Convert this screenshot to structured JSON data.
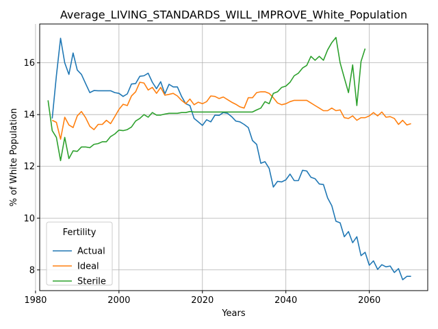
{
  "chart_data": {
    "type": "line",
    "title": "Average_LIVING_STANDARDS_WILL_IMPROVE_White_Population",
    "xlabel": "Years",
    "ylabel": "% of White Population",
    "xlim": [
      1981,
      2074
    ],
    "ylim": [
      7.2,
      17.5
    ],
    "xticks": [
      1980,
      2000,
      2020,
      2040,
      2060
    ],
    "yticks": [
      8,
      10,
      12,
      14,
      16
    ],
    "grid": true,
    "legend": {
      "title": "Fertility",
      "position": "lower-left"
    },
    "series": [
      {
        "name": "Actual",
        "color": "#1f77b4",
        "x": [
          1984,
          1985,
          1986,
          1987,
          1988,
          1989,
          1990,
          1991,
          1992,
          1993,
          1994,
          1995,
          1996,
          1997,
          1998,
          1999,
          2000,
          2001,
          2002,
          2003,
          2004,
          2005,
          2006,
          2007,
          2008,
          2009,
          2010,
          2011,
          2012,
          2013,
          2014,
          2015,
          2016,
          2017,
          2018,
          2019,
          2020,
          2021,
          2022,
          2023,
          2024,
          2025,
          2026,
          2027,
          2028,
          2029,
          2030,
          2031,
          2032,
          2033,
          2034,
          2035,
          2036,
          2037,
          2038,
          2039,
          2040,
          2041,
          2042,
          2043,
          2044,
          2045,
          2046,
          2047,
          2048,
          2049,
          2050,
          2051,
          2052,
          2053,
          2054,
          2055,
          2056,
          2057,
          2058,
          2059,
          2060,
          2061,
          2062,
          2063,
          2064,
          2065,
          2066,
          2067,
          2068,
          2069,
          2070
        ],
        "y": [
          13.85,
          15.5,
          16.95,
          16.0,
          15.55,
          16.38,
          15.72,
          15.55,
          15.2,
          14.85,
          14.93,
          14.92,
          14.92,
          14.92,
          14.92,
          14.85,
          14.82,
          14.7,
          14.8,
          15.18,
          15.2,
          15.48,
          15.5,
          15.6,
          15.25,
          15.0,
          15.27,
          14.8,
          15.17,
          15.07,
          15.07,
          14.7,
          14.42,
          14.35,
          13.85,
          13.72,
          13.58,
          13.8,
          13.72,
          13.98,
          13.97,
          14.08,
          14.05,
          13.92,
          13.75,
          13.72,
          13.62,
          13.5,
          13.0,
          12.85,
          12.12,
          12.18,
          11.92,
          11.2,
          11.42,
          11.4,
          11.48,
          11.7,
          11.45,
          11.45,
          11.85,
          11.82,
          11.58,
          11.52,
          11.32,
          11.3,
          10.78,
          10.48,
          9.88,
          9.82,
          9.28,
          9.48,
          9.05,
          9.28,
          8.55,
          8.68,
          8.18,
          8.35,
          8.02,
          8.2,
          8.12,
          8.15,
          7.9,
          8.05,
          7.62,
          7.75,
          7.75
        ]
      },
      {
        "name": "Ideal",
        "color": "#ff7f0e",
        "x": [
          1984,
          1985,
          1986,
          1987,
          1988,
          1989,
          1990,
          1991,
          1992,
          1993,
          1994,
          1995,
          1996,
          1997,
          1998,
          1999,
          2000,
          2001,
          2002,
          2003,
          2004,
          2005,
          2006,
          2007,
          2008,
          2009,
          2010,
          2011,
          2012,
          2013,
          2014,
          2015,
          2016,
          2017,
          2018,
          2019,
          2020,
          2021,
          2022,
          2023,
          2024,
          2025,
          2026,
          2027,
          2028,
          2029,
          2030,
          2031,
          2032,
          2033,
          2034,
          2035,
          2036,
          2037,
          2038,
          2039,
          2040,
          2041,
          2042,
          2043,
          2044,
          2045,
          2046,
          2047,
          2048,
          2049,
          2050,
          2051,
          2052,
          2053,
          2054,
          2055,
          2056,
          2057,
          2058,
          2059,
          2060,
          2061,
          2062,
          2063,
          2064,
          2065,
          2066,
          2067,
          2068,
          2069,
          2070
        ],
        "y": [
          13.78,
          13.7,
          13.05,
          13.9,
          13.6,
          13.5,
          13.95,
          14.12,
          13.88,
          13.55,
          13.42,
          13.62,
          13.62,
          13.78,
          13.65,
          13.92,
          14.2,
          14.4,
          14.35,
          14.72,
          14.88,
          15.25,
          15.22,
          14.95,
          15.05,
          14.82,
          15.05,
          14.75,
          14.78,
          14.82,
          14.72,
          14.55,
          14.42,
          14.6,
          14.38,
          14.48,
          14.42,
          14.5,
          14.72,
          14.7,
          14.62,
          14.68,
          14.58,
          14.48,
          14.4,
          14.3,
          14.25,
          14.65,
          14.65,
          14.85,
          14.88,
          14.88,
          14.82,
          14.65,
          14.45,
          14.38,
          14.42,
          14.5,
          14.55,
          14.55,
          14.55,
          14.55,
          14.45,
          14.35,
          14.25,
          14.15,
          14.15,
          14.25,
          14.15,
          14.18,
          13.88,
          13.85,
          13.95,
          13.78,
          13.88,
          13.88,
          13.95,
          14.08,
          13.95,
          14.1,
          13.9,
          13.92,
          13.85,
          13.62,
          13.78,
          13.6,
          13.65
        ]
      },
      {
        "name": "Sterile",
        "color": "#2ca02c",
        "x": [
          1983,
          1984,
          1985,
          1986,
          1987,
          1988,
          1989,
          1990,
          1991,
          1992,
          1993,
          1994,
          1995,
          1996,
          1997,
          1998,
          1999,
          2000,
          2001,
          2002,
          2003,
          2004,
          2005,
          2006,
          2007,
          2008,
          2009,
          2010,
          2011,
          2012,
          2013,
          2014,
          2015,
          2016,
          2017,
          2018,
          2019,
          2020,
          2021,
          2022,
          2023,
          2024,
          2025,
          2026,
          2027,
          2028,
          2029,
          2030,
          2031,
          2032,
          2033,
          2034,
          2035,
          2036,
          2037,
          2038,
          2039,
          2040,
          2041,
          2042,
          2043,
          2044,
          2045,
          2046,
          2047,
          2048,
          2049,
          2050,
          2051,
          2052,
          2053,
          2054,
          2055,
          2056,
          2057,
          2058,
          2059
        ],
        "y": [
          14.55,
          13.38,
          13.12,
          12.22,
          13.12,
          12.3,
          12.6,
          12.58,
          12.75,
          12.75,
          12.72,
          12.85,
          12.88,
          12.95,
          12.95,
          13.15,
          13.25,
          13.4,
          13.38,
          13.42,
          13.52,
          13.75,
          13.85,
          14.0,
          13.9,
          14.08,
          13.98,
          13.98,
          14.02,
          14.05,
          14.05,
          14.05,
          14.08,
          14.08,
          14.12,
          14.1,
          14.1,
          14.1,
          14.1,
          14.1,
          14.1,
          14.1,
          14.1,
          14.1,
          14.1,
          14.1,
          14.1,
          14.1,
          14.1,
          14.1,
          14.18,
          14.25,
          14.5,
          14.42,
          14.82,
          14.88,
          15.05,
          15.1,
          15.25,
          15.5,
          15.6,
          15.8,
          15.9,
          16.25,
          16.1,
          16.25,
          16.1,
          16.5,
          16.78,
          16.98,
          16.0,
          15.42,
          14.85,
          15.92,
          14.35,
          16.05,
          16.55
        ]
      }
    ]
  }
}
